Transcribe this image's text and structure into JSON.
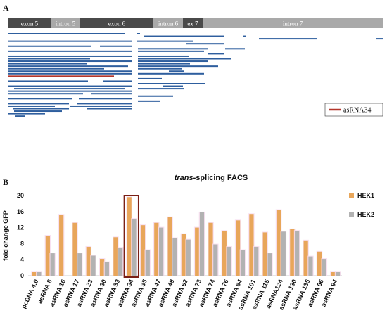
{
  "panel_a": {
    "label": "A",
    "segments": [
      {
        "name": "exon 5",
        "kind": "exon"
      },
      {
        "name": "intron 5",
        "kind": "intron"
      },
      {
        "name": "exon 6",
        "kind": "exon"
      },
      {
        "name": "intron 6",
        "kind": "intron"
      },
      {
        "name": "ex 7",
        "kind": "exon"
      },
      {
        "name": "intron 7",
        "kind": "intron"
      }
    ],
    "legend_label": "asRNA34",
    "colors": {
      "exon": "#4a4a4a",
      "intron": "#a9a9a9",
      "read": "#2e5e9e",
      "highlight": "#b3352a"
    }
  },
  "panel_b": {
    "label": "B"
  },
  "chart_data": {
    "type": "bar",
    "title_italic": "trans",
    "title_rest": "-splicing FACS",
    "xlabel": "",
    "ylabel": "fold change GFP",
    "ylim": [
      0,
      20
    ],
    "yticks": [
      0,
      4,
      8,
      12,
      16,
      20
    ],
    "grid": false,
    "legend_position": "right",
    "highlighted_category": "asRNA 34",
    "categories": [
      "pcDNA 4.0",
      "asRNA 8",
      "asRNA 16",
      "asRNA 17",
      "asRNA 23",
      "asRNA 30",
      "asRNA 33",
      "asRNA 34",
      "asRNA 35",
      "asRNA 47",
      "asRNA 48",
      "asRNA 62",
      "asRNA 73",
      "asRNA 74",
      "asRNA 76",
      "asRNA 84",
      "asRNA 101",
      "asRNA 115",
      "asRNA124",
      "asRNA 130",
      "asRNA 135",
      "asRNA 66",
      "asRNA 94"
    ],
    "series": [
      {
        "name": "HEK1",
        "color": "#e8a65a",
        "values": [
          1,
          10,
          15.2,
          13.2,
          7.2,
          4.2,
          9.6,
          19.6,
          12.6,
          13.2,
          14.6,
          10.4,
          12,
          13.2,
          11.2,
          13.8,
          15.4,
          10.8,
          16.4,
          11.6,
          8.8,
          6,
          1
        ]
      },
      {
        "name": "HEK2",
        "color": "#b2b2b2",
        "values": [
          1,
          5.6,
          0,
          5.6,
          5,
          3.4,
          7,
          14.2,
          6.4,
          12,
          9.4,
          9,
          15.8,
          7.8,
          7.2,
          6.4,
          7.2,
          5.6,
          11,
          11.2,
          4.8,
          4.2,
          1
        ]
      }
    ]
  }
}
